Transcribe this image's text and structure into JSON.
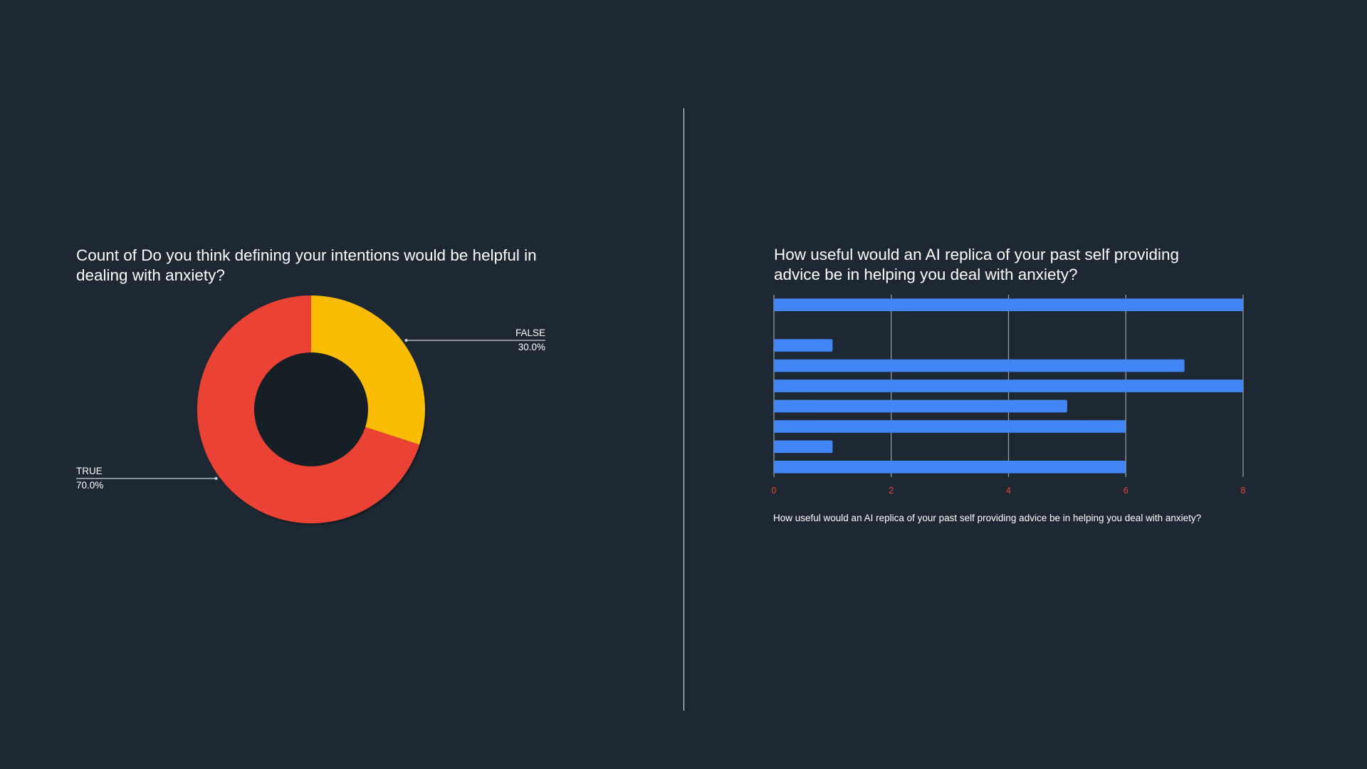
{
  "colors": {
    "background": "#1e2833",
    "true_slice": "#ea4335",
    "false_slice": "#fbbc04",
    "bar": "#4285f4",
    "tick_label": "#ea4335",
    "gridline": "#9aa0a6",
    "text": "#ffffff"
  },
  "chart_data": [
    {
      "type": "pie",
      "donut": true,
      "title": "Count of Do you think defining your intentions would be helpful in dealing with anxiety?",
      "slices": [
        {
          "label": "FALSE",
          "percent_label": "30.0%",
          "value": 30.0,
          "color": "#fbbc04"
        },
        {
          "label": "TRUE",
          "percent_label": "70.0%",
          "value": 70.0,
          "color": "#ea4335"
        }
      ]
    },
    {
      "type": "bar",
      "orientation": "horizontal",
      "title": "How useful would an AI replica of your past self providing advice be in helping you deal with anxiety?",
      "xlabel": "How useful would an AI replica of your past self providing advice be in helping you deal with anxiety?",
      "ylabel": "",
      "xlim": [
        0,
        8
      ],
      "xticks": [
        "0",
        "2",
        "4",
        "6",
        "8"
      ],
      "grid": true,
      "values": [
        8,
        0,
        1,
        7,
        8,
        5,
        6,
        1,
        6
      ]
    }
  ]
}
